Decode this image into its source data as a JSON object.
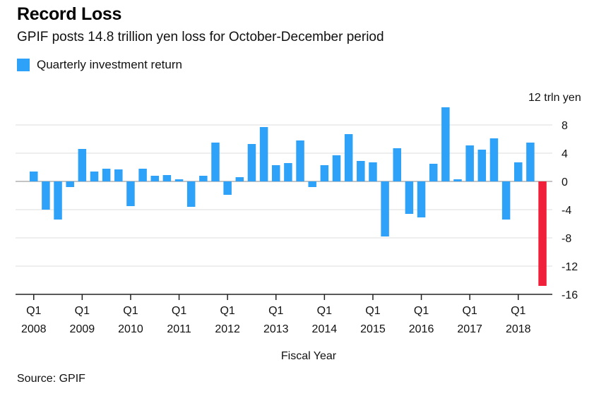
{
  "colors": {
    "positive": "#2ea2f8",
    "negative": "#f0203a",
    "grid": "#dcdcdc",
    "axis": "#222222"
  },
  "chart_data": {
    "type": "bar",
    "title": "Record Loss",
    "subtitle": "GPIF posts 14.8 trillion yen loss for October-December period",
    "legend": "Quarterly investment return",
    "xlabel": "Fiscal Year",
    "ylabel": "12 trln yen",
    "ylim": [
      -16,
      12
    ],
    "yticks": [
      8,
      4,
      0,
      -4,
      -8,
      -12,
      -16
    ],
    "ytick_labels": [
      "8",
      "4",
      "0",
      "-4",
      "-8",
      "-12",
      "-16"
    ],
    "grid": true,
    "legend_position": "top-left",
    "source": "Source: GPIF",
    "x_tick_quarter_label": "Q1",
    "x_tick_years": [
      "2008",
      "2009",
      "2010",
      "2011",
      "2012",
      "2013",
      "2014",
      "2015",
      "2016",
      "2017",
      "2018"
    ],
    "series": [
      {
        "name": "Quarterly investment return",
        "values": [
          1.4,
          -4.0,
          -5.4,
          -0.8,
          4.6,
          1.4,
          1.8,
          1.7,
          -3.5,
          1.8,
          0.8,
          0.9,
          0.3,
          -3.6,
          0.8,
          5.5,
          -1.9,
          0.6,
          5.3,
          7.7,
          2.3,
          2.6,
          5.8,
          -0.8,
          2.3,
          3.7,
          6.7,
          2.9,
          2.7,
          -7.8,
          4.7,
          -4.6,
          -5.1,
          2.5,
          10.5,
          0.3,
          5.1,
          4.5,
          6.1,
          -5.4,
          2.7,
          5.5,
          -14.8
        ],
        "highlight_index": 42
      }
    ]
  }
}
